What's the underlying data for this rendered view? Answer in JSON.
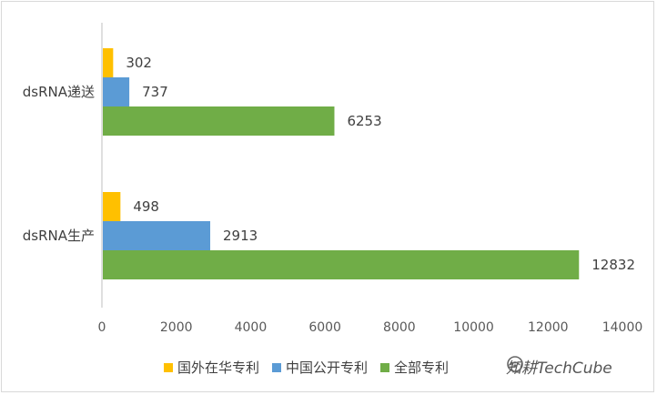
{
  "chart_data": {
    "type": "bar",
    "orientation": "horizontal",
    "categories": [
      "dsRNA递送",
      "dsRNA生产"
    ],
    "series": [
      {
        "name": "国外在华专利",
        "color": "#FFC000",
        "values": [
          302,
          498
        ]
      },
      {
        "name": "中国公开专利",
        "color": "#5B9BD5",
        "values": [
          737,
          2913
        ]
      },
      {
        "name": "全部专利",
        "color": "#70AD47",
        "values": [
          6253,
          12832
        ]
      }
    ],
    "xlim": [
      0,
      14000
    ],
    "xticks": [
      0,
      2000,
      4000,
      6000,
      8000,
      10000,
      12000,
      14000
    ],
    "grid": false,
    "legend_position": "bottom",
    "title": "",
    "xlabel": "",
    "ylabel": ""
  },
  "watermark": {
    "text": "知耕TechCube",
    "icon": "wechat-official-account-icon"
  }
}
